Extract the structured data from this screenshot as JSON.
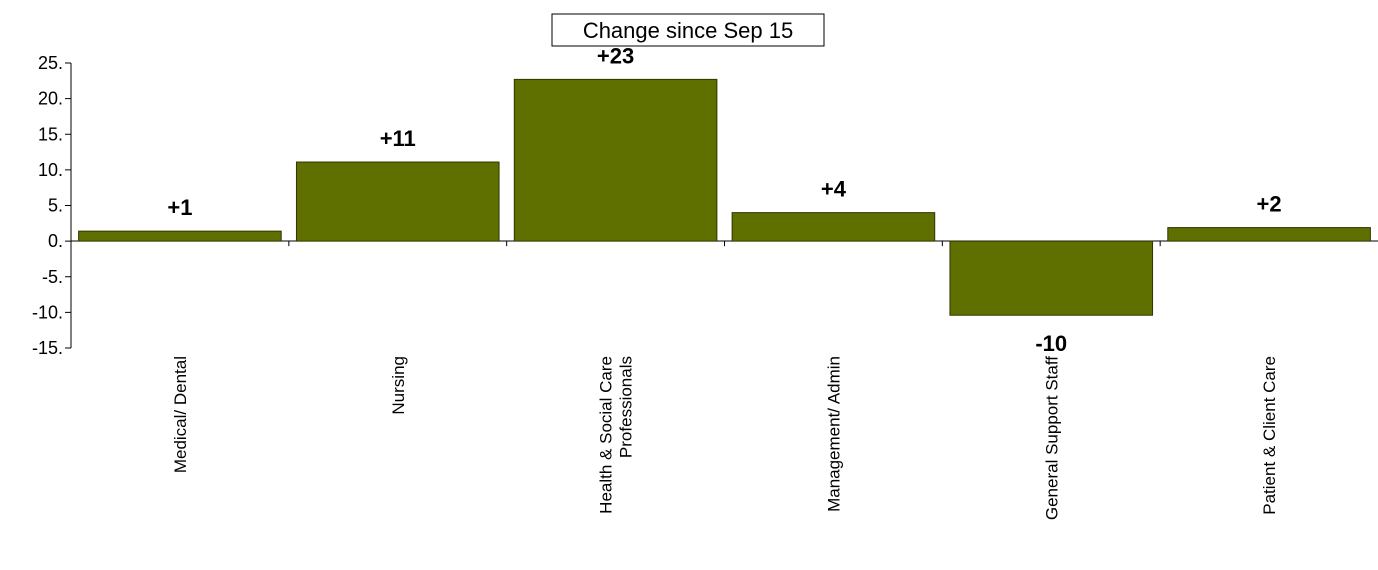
{
  "chart_data": {
    "type": "bar",
    "title": "Change since Sep 15",
    "categories": [
      [
        "Medical/ Dental"
      ],
      [
        "Nursing"
      ],
      [
        "Health & Social Care",
        "Professionals"
      ],
      [
        "Management/ Admin"
      ],
      [
        "General Support Staff"
      ],
      [
        "Patient & Client Care"
      ]
    ],
    "values": [
      1.4,
      11.1,
      22.7,
      4.0,
      -10.4,
      1.9
    ],
    "data_labels": [
      "+1",
      "+11",
      "+23",
      "+4",
      "-10",
      "+2"
    ],
    "y_ticks": [
      "25.",
      "20.",
      "15.",
      "10.",
      "5.",
      "0.",
      "-5.",
      "-10.",
      "-15."
    ],
    "ylim": [
      -15,
      25
    ],
    "grid": false,
    "legend": "none",
    "bar_color": "#5F7000"
  }
}
